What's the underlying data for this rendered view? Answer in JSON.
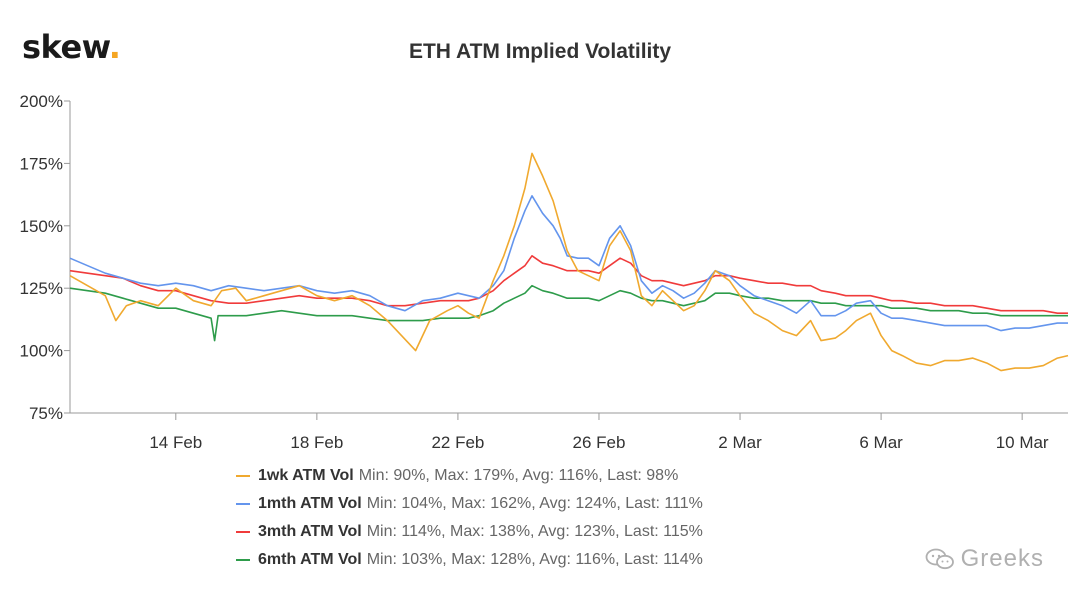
{
  "brand": {
    "name": "skew",
    "dot": "."
  },
  "watermark": {
    "text": "Greeks",
    "icon": "wechat-icon"
  },
  "chart_data": {
    "type": "line",
    "title": "ETH ATM Implied Volatility",
    "xlabel": "",
    "ylabel": "",
    "x_tick_labels": [
      "14 Feb",
      "18 Feb",
      "22 Feb",
      "26 Feb",
      "2 Mar",
      "6 Mar",
      "10 Mar"
    ],
    "y_tick_labels": [
      "75%",
      "100%",
      "125%",
      "150%",
      "175%",
      "200%"
    ],
    "xlim_days": [
      0,
      28.3
    ],
    "x_tick_days": [
      3,
      7,
      11,
      15,
      19,
      23,
      27
    ],
    "ylim": [
      75,
      200
    ],
    "y_ticks": [
      75,
      100,
      125,
      150,
      175,
      200
    ],
    "grid": false,
    "legend_position": "bottom",
    "series": [
      {
        "name": "1wk ATM Vol",
        "stats": "Min: 90%, Max: 179%, Avg: 116%, Last: 98%",
        "color": "#f0a92f",
        "points": [
          [
            0,
            130
          ],
          [
            0.5,
            126
          ],
          [
            1,
            122
          ],
          [
            1.3,
            112
          ],
          [
            1.6,
            118
          ],
          [
            2,
            120
          ],
          [
            2.5,
            118
          ],
          [
            3,
            125
          ],
          [
            3.5,
            120
          ],
          [
            4,
            118
          ],
          [
            4.3,
            124
          ],
          [
            4.7,
            125
          ],
          [
            5,
            120
          ],
          [
            5.5,
            122
          ],
          [
            6,
            124
          ],
          [
            6.5,
            126
          ],
          [
            7,
            122
          ],
          [
            7.5,
            120
          ],
          [
            8,
            122
          ],
          [
            8.5,
            118
          ],
          [
            9,
            112
          ],
          [
            9.4,
            106
          ],
          [
            9.8,
            100
          ],
          [
            10.2,
            112
          ],
          [
            10.7,
            116
          ],
          [
            11,
            118
          ],
          [
            11.3,
            115
          ],
          [
            11.6,
            113
          ],
          [
            12,
            128
          ],
          [
            12.3,
            138
          ],
          [
            12.6,
            150
          ],
          [
            12.9,
            165
          ],
          [
            13.1,
            179
          ],
          [
            13.4,
            170
          ],
          [
            13.7,
            160
          ],
          [
            13.9,
            150
          ],
          [
            14.1,
            140
          ],
          [
            14.4,
            132
          ],
          [
            14.7,
            130
          ],
          [
            15,
            128
          ],
          [
            15.3,
            142
          ],
          [
            15.6,
            148
          ],
          [
            15.9,
            140
          ],
          [
            16.2,
            122
          ],
          [
            16.5,
            118
          ],
          [
            16.8,
            124
          ],
          [
            17.1,
            120
          ],
          [
            17.4,
            116
          ],
          [
            17.7,
            118
          ],
          [
            18,
            124
          ],
          [
            18.3,
            132
          ],
          [
            18.7,
            128
          ],
          [
            19,
            122
          ],
          [
            19.4,
            115
          ],
          [
            19.8,
            112
          ],
          [
            20.2,
            108
          ],
          [
            20.6,
            106
          ],
          [
            21,
            112
          ],
          [
            21.3,
            104
          ],
          [
            21.7,
            105
          ],
          [
            22,
            108
          ],
          [
            22.3,
            112
          ],
          [
            22.7,
            115
          ],
          [
            23,
            106
          ],
          [
            23.3,
            100
          ],
          [
            23.6,
            98
          ],
          [
            24,
            95
          ],
          [
            24.4,
            94
          ],
          [
            24.8,
            96
          ],
          [
            25.2,
            96
          ],
          [
            25.6,
            97
          ],
          [
            26,
            95
          ],
          [
            26.4,
            92
          ],
          [
            26.8,
            93
          ],
          [
            27.2,
            93
          ],
          [
            27.6,
            94
          ],
          [
            28,
            97
          ],
          [
            28.3,
            98
          ]
        ]
      },
      {
        "name": "1mth ATM Vol",
        "stats": "Min: 104%, Max: 162%, Avg: 124%, Last: 111%",
        "color": "#6495ed",
        "points": [
          [
            0,
            137
          ],
          [
            0.5,
            134
          ],
          [
            1,
            131
          ],
          [
            1.5,
            129
          ],
          [
            2,
            127
          ],
          [
            2.5,
            126
          ],
          [
            3,
            127
          ],
          [
            3.5,
            126
          ],
          [
            4,
            124
          ],
          [
            4.5,
            126
          ],
          [
            5,
            125
          ],
          [
            5.5,
            124
          ],
          [
            6,
            125
          ],
          [
            6.5,
            126
          ],
          [
            7,
            124
          ],
          [
            7.5,
            123
          ],
          [
            8,
            124
          ],
          [
            8.5,
            122
          ],
          [
            9,
            118
          ],
          [
            9.5,
            116
          ],
          [
            10,
            120
          ],
          [
            10.5,
            121
          ],
          [
            11,
            123
          ],
          [
            11.3,
            122
          ],
          [
            11.6,
            121
          ],
          [
            12,
            126
          ],
          [
            12.3,
            132
          ],
          [
            12.6,
            145
          ],
          [
            12.9,
            156
          ],
          [
            13.1,
            162
          ],
          [
            13.4,
            155
          ],
          [
            13.7,
            150
          ],
          [
            13.9,
            145
          ],
          [
            14.1,
            138
          ],
          [
            14.4,
            137
          ],
          [
            14.7,
            137
          ],
          [
            15,
            134
          ],
          [
            15.3,
            145
          ],
          [
            15.6,
            150
          ],
          [
            15.9,
            142
          ],
          [
            16.2,
            128
          ],
          [
            16.5,
            123
          ],
          [
            16.8,
            126
          ],
          [
            17.1,
            124
          ],
          [
            17.4,
            121
          ],
          [
            17.7,
            123
          ],
          [
            18,
            127
          ],
          [
            18.3,
            132
          ],
          [
            18.7,
            130
          ],
          [
            19,
            126
          ],
          [
            19.4,
            122
          ],
          [
            19.8,
            120
          ],
          [
            20.2,
            118
          ],
          [
            20.6,
            115
          ],
          [
            21,
            120
          ],
          [
            21.3,
            114
          ],
          [
            21.7,
            114
          ],
          [
            22,
            116
          ],
          [
            22.3,
            119
          ],
          [
            22.7,
            120
          ],
          [
            23,
            115
          ],
          [
            23.3,
            113
          ],
          [
            23.6,
            113
          ],
          [
            24,
            112
          ],
          [
            24.4,
            111
          ],
          [
            24.8,
            110
          ],
          [
            25.2,
            110
          ],
          [
            25.6,
            110
          ],
          [
            26,
            110
          ],
          [
            26.4,
            108
          ],
          [
            26.8,
            109
          ],
          [
            27.2,
            109
          ],
          [
            27.6,
            110
          ],
          [
            28,
            111
          ],
          [
            28.3,
            111
          ]
        ]
      },
      {
        "name": "3mth ATM Vol",
        "stats": "Min: 114%, Max: 138%, Avg: 123%, Last: 115%",
        "color": "#f03b3b",
        "points": [
          [
            0,
            132
          ],
          [
            0.5,
            131
          ],
          [
            1,
            130
          ],
          [
            1.5,
            129
          ],
          [
            2,
            126
          ],
          [
            2.5,
            124
          ],
          [
            3,
            124
          ],
          [
            3.5,
            122
          ],
          [
            4,
            120
          ],
          [
            4.5,
            119
          ],
          [
            5,
            119
          ],
          [
            5.5,
            120
          ],
          [
            6,
            121
          ],
          [
            6.5,
            122
          ],
          [
            7,
            121
          ],
          [
            7.5,
            121
          ],
          [
            8,
            121
          ],
          [
            8.5,
            120
          ],
          [
            9,
            118
          ],
          [
            9.5,
            118
          ],
          [
            10,
            119
          ],
          [
            10.5,
            120
          ],
          [
            11,
            120
          ],
          [
            11.3,
            120
          ],
          [
            11.6,
            121
          ],
          [
            12,
            124
          ],
          [
            12.3,
            128
          ],
          [
            12.6,
            131
          ],
          [
            12.9,
            134
          ],
          [
            13.1,
            138
          ],
          [
            13.4,
            135
          ],
          [
            13.7,
            134
          ],
          [
            13.9,
            133
          ],
          [
            14.1,
            132
          ],
          [
            14.4,
            132
          ],
          [
            14.7,
            132
          ],
          [
            15,
            131
          ],
          [
            15.3,
            134
          ],
          [
            15.6,
            137
          ],
          [
            15.9,
            135
          ],
          [
            16.2,
            130
          ],
          [
            16.5,
            128
          ],
          [
            16.8,
            128
          ],
          [
            17.1,
            127
          ],
          [
            17.4,
            126
          ],
          [
            17.7,
            127
          ],
          [
            18,
            128
          ],
          [
            18.3,
            130
          ],
          [
            18.7,
            130
          ],
          [
            19,
            129
          ],
          [
            19.4,
            128
          ],
          [
            19.8,
            127
          ],
          [
            20.2,
            127
          ],
          [
            20.6,
            126
          ],
          [
            21,
            126
          ],
          [
            21.3,
            124
          ],
          [
            21.7,
            123
          ],
          [
            22,
            122
          ],
          [
            22.3,
            122
          ],
          [
            22.7,
            122
          ],
          [
            23,
            121
          ],
          [
            23.3,
            120
          ],
          [
            23.6,
            120
          ],
          [
            24,
            119
          ],
          [
            24.4,
            119
          ],
          [
            24.8,
            118
          ],
          [
            25.2,
            118
          ],
          [
            25.6,
            118
          ],
          [
            26,
            117
          ],
          [
            26.4,
            116
          ],
          [
            26.8,
            116
          ],
          [
            27.2,
            116
          ],
          [
            27.6,
            116
          ],
          [
            28,
            115
          ],
          [
            28.3,
            115
          ]
        ]
      },
      {
        "name": "6mth ATM Vol",
        "stats": "Min: 103%, Max: 128%, Avg: 116%, Last: 114%",
        "color": "#2e9c4b",
        "points": [
          [
            0,
            125
          ],
          [
            0.5,
            124
          ],
          [
            1,
            123
          ],
          [
            1.5,
            121
          ],
          [
            2,
            119
          ],
          [
            2.5,
            117
          ],
          [
            3,
            117
          ],
          [
            3.5,
            115
          ],
          [
            4,
            113
          ],
          [
            4.1,
            104
          ],
          [
            4.2,
            114
          ],
          [
            4.5,
            114
          ],
          [
            5,
            114
          ],
          [
            5.5,
            115
          ],
          [
            6,
            116
          ],
          [
            6.5,
            115
          ],
          [
            7,
            114
          ],
          [
            7.5,
            114
          ],
          [
            8,
            114
          ],
          [
            8.5,
            113
          ],
          [
            9,
            112
          ],
          [
            9.5,
            112
          ],
          [
            10,
            112
          ],
          [
            10.5,
            113
          ],
          [
            11,
            113
          ],
          [
            11.3,
            113
          ],
          [
            11.6,
            114
          ],
          [
            12,
            116
          ],
          [
            12.3,
            119
          ],
          [
            12.6,
            121
          ],
          [
            12.9,
            123
          ],
          [
            13.1,
            126
          ],
          [
            13.4,
            124
          ],
          [
            13.7,
            123
          ],
          [
            13.9,
            122
          ],
          [
            14.1,
            121
          ],
          [
            14.4,
            121
          ],
          [
            14.7,
            121
          ],
          [
            15,
            120
          ],
          [
            15.3,
            122
          ],
          [
            15.6,
            124
          ],
          [
            15.9,
            123
          ],
          [
            16.2,
            121
          ],
          [
            16.5,
            120
          ],
          [
            16.8,
            120
          ],
          [
            17.1,
            119
          ],
          [
            17.4,
            118
          ],
          [
            17.7,
            119
          ],
          [
            18,
            120
          ],
          [
            18.3,
            123
          ],
          [
            18.7,
            123
          ],
          [
            19,
            122
          ],
          [
            19.4,
            121
          ],
          [
            19.8,
            121
          ],
          [
            20.2,
            120
          ],
          [
            20.6,
            120
          ],
          [
            21,
            120
          ],
          [
            21.3,
            119
          ],
          [
            21.7,
            119
          ],
          [
            22,
            118
          ],
          [
            22.3,
            118
          ],
          [
            22.7,
            118
          ],
          [
            23,
            118
          ],
          [
            23.3,
            117
          ],
          [
            23.6,
            117
          ],
          [
            24,
            117
          ],
          [
            24.4,
            116
          ],
          [
            24.8,
            116
          ],
          [
            25.2,
            116
          ],
          [
            25.6,
            115
          ],
          [
            26,
            115
          ],
          [
            26.4,
            114
          ],
          [
            26.8,
            114
          ],
          [
            27.2,
            114
          ],
          [
            27.6,
            114
          ],
          [
            28,
            114
          ],
          [
            28.3,
            114
          ]
        ]
      }
    ]
  }
}
